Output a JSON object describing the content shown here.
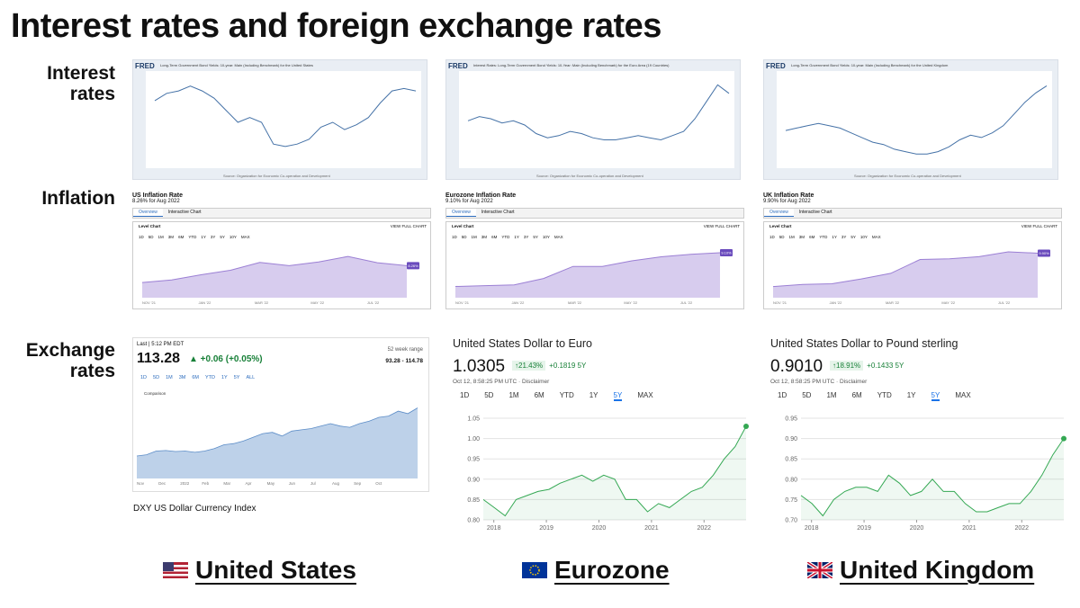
{
  "title": "Interest rates and foreign exchange rates",
  "row_labels": [
    "Interest rates",
    "Inflation",
    "Exchange rates"
  ],
  "columns": [
    {
      "name": "United States",
      "interest": {
        "type": "line",
        "brand": "FRED",
        "title": "Long-Term Government Bond Yields: 10-year: Main (Including Benchmark) for the United States",
        "source": "Source: Organization for Economic Co-operation and Development",
        "color": "#4572a7",
        "ylim": [
          0,
          3.5
        ],
        "values": [
          2.5,
          2.8,
          2.9,
          3.1,
          2.9,
          2.6,
          2.1,
          1.6,
          1.8,
          1.6,
          0.7,
          0.6,
          0.7,
          0.9,
          1.4,
          1.6,
          1.3,
          1.5,
          1.8,
          2.4,
          2.9,
          3.0,
          2.9
        ]
      },
      "inflation": {
        "type": "area",
        "title": "US Inflation Rate",
        "subtitle": "8.26% for Aug 2022",
        "tabs": [
          "Overview",
          "Interactive Chart"
        ],
        "chart_label": "Level Chart",
        "link": "VIEW FULL CHART",
        "ranges": [
          "1D",
          "5D",
          "1M",
          "3M",
          "6M",
          "YTD",
          "1Y",
          "3Y",
          "5Y",
          "10Y",
          "MAX"
        ],
        "color": "#9b7fd4",
        "ylim": [
          5.5,
          10
        ],
        "x_labels": [
          "NOV '21",
          "JAN '22",
          "MAR '22",
          "MAY '22",
          "JUL '22"
        ],
        "values": [
          6.81,
          7.04,
          7.48,
          7.87,
          8.54,
          8.26,
          8.58,
          9.06,
          8.52,
          8.26
        ],
        "value_label": "8.26%"
      },
      "exchange": {
        "type": "area",
        "header": "Last | 5:12 PM EDT",
        "price": "113.28",
        "change": "▲ +0.06 (+0.05%)",
        "range_label": "52 week range",
        "range": "93.28 - 114.78",
        "ranges": [
          "1D",
          "5D",
          "1M",
          "3M",
          "6M",
          "YTD",
          "1Y",
          "5Y",
          "ALL"
        ],
        "comparison": "Comparison",
        "color": "#5b8cc7",
        "ylim": [
          85,
          116
        ],
        "x_labels": [
          "Nov",
          "Dec",
          "2022",
          "Feb",
          "Mar",
          "Apr",
          "May",
          "Jun",
          "Jul",
          "Aug",
          "Sep",
          "Oct"
        ],
        "values": [
          94,
          94.5,
          96,
          96.2,
          95.8,
          96,
          95.5,
          96,
          97,
          98.5,
          99,
          100,
          101.5,
          103,
          103.5,
          102,
          104,
          104.5,
          105,
          106,
          107,
          106,
          105.5,
          107,
          108,
          109.5,
          110,
          112,
          111,
          113.28
        ],
        "caption": "DXY US Dollar Currency Index"
      }
    },
    {
      "name": "Eurozone",
      "interest": {
        "type": "line",
        "brand": "FRED",
        "title": "Interest Rates: Long-Term Government Bond Yields: 10-Year: Main (Including Benchmark) for the Euro Area (19 Countries)",
        "source": "Source: Organization for Economic Co-operation and Development",
        "color": "#4572a7",
        "ylim": [
          -0.8,
          3.2
        ],
        "values": [
          1.1,
          1.3,
          1.2,
          1.0,
          1.1,
          0.9,
          0.5,
          0.3,
          0.4,
          0.6,
          0.5,
          0.3,
          0.2,
          0.2,
          0.3,
          0.4,
          0.3,
          0.2,
          0.4,
          0.6,
          1.2,
          2.0,
          2.8,
          2.4
        ]
      },
      "inflation": {
        "type": "area",
        "title": "Eurozone Inflation Rate",
        "subtitle": "9.10% for Aug 2022",
        "tabs": [
          "Overview",
          "Interactive Chart"
        ],
        "chart_label": "Level Chart",
        "link": "VIEW FULL CHART",
        "ranges": [
          "1D",
          "5D",
          "1M",
          "3M",
          "6M",
          "YTD",
          "1Y",
          "3Y",
          "5Y",
          "10Y",
          "MAX"
        ],
        "color": "#9b7fd4",
        "ylim": [
          3.5,
          10
        ],
        "x_labels": [
          "NOV '21",
          "JAN '22",
          "MAR '22",
          "MAY '22",
          "JUL '22"
        ],
        "values": [
          4.9,
          5.0,
          5.1,
          5.9,
          7.4,
          7.4,
          8.1,
          8.6,
          8.9,
          9.1
        ],
        "value_label": "9.10%"
      },
      "exchange": {
        "type": "line",
        "title": "United States Dollar to Euro",
        "price": "1.0305",
        "change": "↑21.43%",
        "change_abs": "+0.1819 5Y",
        "date": "Oct 12, 8:58:25 PM UTC · Disclaimer",
        "ranges": [
          "1D",
          "5D",
          "1M",
          "6M",
          "YTD",
          "1Y",
          "5Y",
          "MAX"
        ],
        "selected": "5Y",
        "color": "#34a853",
        "xlim": [
          2017.8,
          2022.8
        ],
        "xticks": [
          2018,
          2019,
          2020,
          2021,
          2022
        ],
        "ylim": [
          0.8,
          1.05
        ],
        "yticks": [
          1.05,
          {
            "value": 1.0,
            "label": "1.00"
          },
          0.95,
          {
            "value": 0.9,
            "label": "0.90"
          },
          0.85,
          {
            "value": 0.8,
            "label": "0.80"
          }
        ],
        "values": [
          0.85,
          0.83,
          0.81,
          0.85,
          0.86,
          0.87,
          0.875,
          0.89,
          0.9,
          0.91,
          0.895,
          0.91,
          0.9,
          0.85,
          0.85,
          0.82,
          0.84,
          0.83,
          0.85,
          0.87,
          0.88,
          0.91,
          0.95,
          0.98,
          1.03
        ]
      }
    },
    {
      "name": "United Kingdom",
      "interest": {
        "type": "line",
        "brand": "FRED",
        "title": "Long-Term Government Bond Yields: 10-year: Main (Including Benchmark) for the United Kingdom",
        "source": "Source: Organization for Economic Co-operation and Development",
        "color": "#4572a7",
        "ylim": [
          0,
          3.6
        ],
        "values": [
          1.3,
          1.4,
          1.5,
          1.6,
          1.5,
          1.4,
          1.2,
          1.0,
          0.8,
          0.7,
          0.5,
          0.4,
          0.3,
          0.3,
          0.4,
          0.6,
          0.9,
          1.1,
          1.0,
          1.2,
          1.5,
          2.0,
          2.5,
          2.9,
          3.2
        ]
      },
      "inflation": {
        "type": "area",
        "title": "UK Inflation Rate",
        "subtitle": "9.90% for Aug 2022",
        "tabs": [
          "Overview",
          "Interactive Chart"
        ],
        "chart_label": "Level Chart",
        "link": "VIEW FULL CHART",
        "ranges": [
          "1D",
          "5D",
          "1M",
          "3M",
          "6M",
          "YTD",
          "1Y",
          "3Y",
          "5Y",
          "10Y",
          "MAX"
        ],
        "color": "#9b7fd4",
        "ylim": [
          3.5,
          11
        ],
        "x_labels": [
          "NOV '21",
          "JAN '22",
          "MAR '22",
          "MAY '22",
          "JUL '22"
        ],
        "values": [
          5.1,
          5.4,
          5.5,
          6.2,
          7.0,
          9.0,
          9.1,
          9.4,
          10.1,
          9.9
        ],
        "value_label": "9.90%"
      },
      "exchange": {
        "type": "line",
        "title": "United States Dollar to Pound sterling",
        "price": "0.9010",
        "change": "↑18.91%",
        "change_abs": "+0.1433 5Y",
        "date": "Oct 12, 8:58:25 PM UTC · Disclaimer",
        "ranges": [
          "1D",
          "5D",
          "1M",
          "6M",
          "YTD",
          "1Y",
          "5Y",
          "MAX"
        ],
        "selected": "5Y",
        "color": "#34a853",
        "xlim": [
          2017.8,
          2022.8
        ],
        "xticks": [
          2018,
          2019,
          2020,
          2021,
          2022
        ],
        "ylim": [
          0.7,
          0.95
        ],
        "yticks": [
          0.95,
          {
            "value": 0.9,
            "label": "0.90"
          },
          0.85,
          {
            "value": 0.8,
            "label": "0.80"
          },
          0.75,
          {
            "value": 0.7,
            "label": "0.70"
          }
        ],
        "values": [
          0.76,
          0.74,
          0.71,
          0.75,
          0.77,
          0.78,
          0.78,
          0.77,
          0.81,
          0.79,
          0.76,
          0.77,
          0.8,
          0.77,
          0.77,
          0.74,
          0.72,
          0.72,
          0.73,
          0.74,
          0.74,
          0.77,
          0.81,
          0.86,
          0.9
        ]
      }
    }
  ]
}
